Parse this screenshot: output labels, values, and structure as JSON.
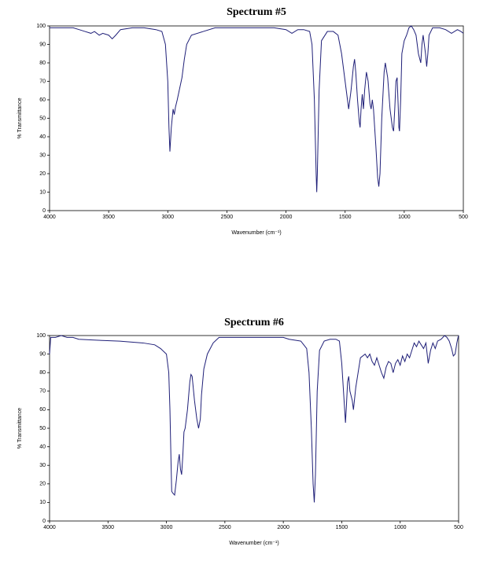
{
  "chart_data": [
    {
      "type": "line",
      "title": "Spectrum #5",
      "xlabel": "Wavenumber (cm⁻¹)",
      "ylabel": "% Transmittance",
      "color": "#1f1f78",
      "xlim": [
        4000,
        500
      ],
      "xticks": [
        4000,
        3500,
        3000,
        2500,
        2000,
        1500,
        1000,
        500
      ],
      "ylim": [
        0,
        100
      ],
      "yticks": [
        0,
        10,
        20,
        30,
        40,
        50,
        60,
        70,
        80,
        90,
        100
      ],
      "x": [
        4000,
        3900,
        3800,
        3750,
        3700,
        3650,
        3620,
        3580,
        3550,
        3500,
        3470,
        3440,
        3400,
        3300,
        3200,
        3100,
        3050,
        3020,
        3000,
        2990,
        2982,
        2970,
        2955,
        2945,
        2935,
        2920,
        2900,
        2880,
        2860,
        2840,
        2800,
        2700,
        2600,
        2500,
        2400,
        2300,
        2200,
        2100,
        2000,
        1950,
        1900,
        1850,
        1800,
        1780,
        1760,
        1745,
        1740,
        1735,
        1720,
        1700,
        1650,
        1600,
        1560,
        1530,
        1500,
        1480,
        1470,
        1450,
        1430,
        1420,
        1410,
        1395,
        1380,
        1373,
        1365,
        1355,
        1345,
        1335,
        1320,
        1305,
        1290,
        1280,
        1270,
        1260,
        1240,
        1225,
        1215,
        1205,
        1190,
        1170,
        1160,
        1140,
        1120,
        1100,
        1090,
        1080,
        1070,
        1060,
        1050,
        1045,
        1040,
        1030,
        1020,
        1000,
        980,
        960,
        940,
        920,
        900,
        880,
        860,
        850,
        840,
        820,
        810,
        800,
        790,
        760,
        700,
        650,
        600,
        550,
        520,
        500
      ],
      "values": [
        99,
        99,
        99,
        98,
        97,
        96,
        97,
        95,
        96,
        95,
        93,
        95,
        98,
        99,
        99,
        98,
        97,
        90,
        70,
        45,
        32,
        45,
        55,
        52,
        56,
        60,
        66,
        72,
        82,
        90,
        95,
        97,
        99,
        99,
        99,
        99,
        99,
        99,
        98,
        96,
        98,
        98,
        97,
        90,
        60,
        20,
        10,
        20,
        65,
        92,
        97,
        97,
        95,
        85,
        70,
        60,
        55,
        65,
        78,
        82,
        75,
        60,
        48,
        45,
        55,
        63,
        55,
        65,
        75,
        70,
        58,
        55,
        60,
        55,
        35,
        18,
        13,
        20,
        50,
        75,
        80,
        72,
        55,
        45,
        43,
        55,
        70,
        72,
        55,
        45,
        43,
        60,
        85,
        92,
        95,
        99,
        100,
        98,
        95,
        85,
        80,
        90,
        95,
        85,
        78,
        85,
        95,
        99,
        99,
        98,
        96,
        98,
        97,
        96
      ]
    },
    {
      "type": "line",
      "title": "Spectrum #6",
      "xlabel": "Wavenumber (cm⁻¹)",
      "ylabel": "% Transmittance",
      "color": "#1f1f78",
      "xlim": [
        4000,
        500
      ],
      "xticks": [
        4000,
        3500,
        3000,
        2500,
        2000,
        1500,
        1000,
        500
      ],
      "ylim": [
        0,
        100
      ],
      "yticks": [
        0,
        10,
        20,
        30,
        40,
        50,
        60,
        70,
        80,
        90,
        100
      ],
      "x": [
        4000,
        3990,
        3950,
        3900,
        3850,
        3800,
        3750,
        3600,
        3400,
        3200,
        3100,
        3050,
        3000,
        2980,
        2970,
        2960,
        2955,
        2945,
        2930,
        2915,
        2900,
        2890,
        2880,
        2870,
        2860,
        2850,
        2840,
        2820,
        2800,
        2790,
        2780,
        2760,
        2740,
        2725,
        2710,
        2700,
        2680,
        2650,
        2600,
        2550,
        2500,
        2300,
        2100,
        2000,
        1950,
        1850,
        1800,
        1780,
        1760,
        1745,
        1735,
        1725,
        1710,
        1690,
        1650,
        1600,
        1550,
        1520,
        1500,
        1480,
        1468,
        1460,
        1450,
        1440,
        1430,
        1410,
        1400,
        1380,
        1360,
        1340,
        1300,
        1280,
        1260,
        1240,
        1220,
        1200,
        1180,
        1160,
        1140,
        1120,
        1100,
        1080,
        1060,
        1040,
        1020,
        1000,
        980,
        960,
        940,
        920,
        900,
        880,
        860,
        840,
        820,
        800,
        780,
        760,
        740,
        720,
        700,
        680,
        650,
        620,
        600,
        580,
        560,
        545,
        530,
        515,
        505,
        500
      ],
      "values": [
        90,
        99,
        99,
        100,
        99,
        99,
        98,
        97.5,
        97,
        96,
        95,
        93,
        90,
        80,
        60,
        30,
        16,
        15,
        14,
        22,
        32,
        36,
        28,
        25,
        35,
        48,
        50,
        60,
        75,
        79,
        78,
        65,
        55,
        50,
        55,
        68,
        82,
        90,
        96,
        99,
        99,
        99,
        99,
        99,
        98,
        97,
        93,
        80,
        50,
        20,
        10,
        25,
        70,
        92,
        97,
        98,
        98,
        97,
        85,
        65,
        53,
        62,
        75,
        78,
        70,
        65,
        60,
        72,
        80,
        88,
        90,
        88,
        90,
        86,
        84,
        88,
        84,
        80,
        77,
        83,
        86,
        85,
        80,
        85,
        87,
        84,
        89,
        86,
        90,
        88,
        92,
        96,
        94,
        97,
        95,
        93,
        96,
        85,
        92,
        96,
        93,
        97,
        98,
        100,
        99,
        97,
        93,
        89,
        90,
        96,
        99,
        100
      ]
    }
  ]
}
